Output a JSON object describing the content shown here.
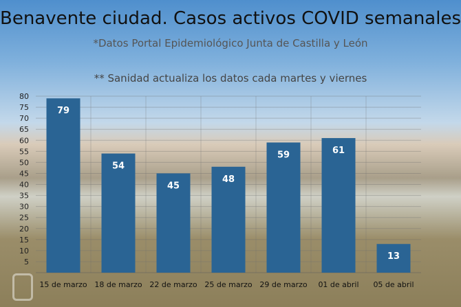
{
  "title": "Benavente ciudad. Casos activos COVID semanales",
  "subtitle": "*Datos Portal Epidemiológico Junta de Castilla y León",
  "note": "** Sanidad actualiza los datos cada martes y viernes",
  "colors": {
    "bar": "#2a6494",
    "bar_label": "#ffffff"
  },
  "chart_data": {
    "type": "bar",
    "categories": [
      "15 de marzo",
      "18 de marzo",
      "22 de marzo",
      "25 de marzo",
      "29 de marzo",
      "01 de abril",
      "05 de abril"
    ],
    "values": [
      79,
      54,
      45,
      48,
      59,
      61,
      13
    ],
    "ylim": [
      0,
      80
    ],
    "yticks": [
      5,
      10,
      15,
      20,
      25,
      30,
      35,
      40,
      45,
      50,
      55,
      60,
      65,
      70,
      75,
      80
    ],
    "grid": true,
    "data_labels": true
  }
}
